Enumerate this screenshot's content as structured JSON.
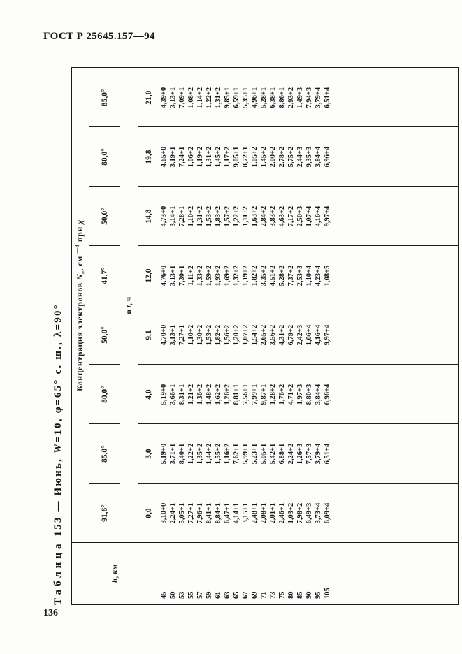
{
  "page": {
    "gost_header": "ГОСТ Р 25645.157—94",
    "page_number": "136"
  },
  "table": {
    "title": {
      "word": "Таблица",
      "rest": " 153 — Июнь, ",
      "w_overline": "W",
      "suffix": "=10, φ=65° с. ш., λ=90°"
    },
    "header": {
      "h_label": {
        "h": "h",
        "rest": ", км"
      },
      "concentration": {
        "part1": "Концентрация электронов ",
        "n": "N",
        "n_sub": "e",
        "part2": ", см ",
        "exp": "—3",
        "part3": " при ",
        "chi": "χ"
      },
      "angles": [
        "91,6°",
        "85,0°",
        "80,0°",
        "50,0°",
        "41,7°",
        "50,0°",
        "80,0°",
        "85,0°"
      ],
      "and_t": {
        "part1": "и ",
        "t": "t",
        "part2": ", ч"
      },
      "times": [
        "0,0",
        "3,0",
        "4,0",
        "9,1",
        "12,0",
        "14,8",
        "19,8",
        "21,0"
      ]
    },
    "rows": [
      {
        "h": "45",
        "values": [
          "3,10+0",
          "5,19+0",
          "5,19+0",
          "4,70+0",
          "4,76+0",
          "4,73+0",
          "4,65+0",
          "4,39+0"
        ]
      },
      {
        "h": "50",
        "values": [
          "2,24+1",
          "3,71+1",
          "3,66+1",
          "3,13+1",
          "3,13+1",
          "3,14+1",
          "3,19+1",
          "3,13+1"
        ]
      },
      {
        "h": "53",
        "values": [
          "5,05+1",
          "8,40+1",
          "8,31+1",
          "7,27+1",
          "7,30+1",
          "7,28+1",
          "7,24+1",
          "7,09+1"
        ]
      },
      {
        "h": "55",
        "values": [
          "7,27+1",
          "1,22+2",
          "1,21+2",
          "1,10+2",
          "1,11+2",
          "1,10+2",
          "1,06+2",
          "1,08+2"
        ]
      },
      {
        "h": "57",
        "values": [
          "7,96+1",
          "1,35+2",
          "1,36+2",
          "1,30+2",
          "1,33+2",
          "1,31+2",
          "1,19+2",
          "1,14+2"
        ]
      },
      {
        "h": "59",
        "values": [
          "8,41+1",
          "1,44+2",
          "1,48+2",
          "1,53+2",
          "1,59+2",
          "1,53+2",
          "1,31+2",
          "1,22+2"
        ]
      },
      {
        "h": "61",
        "values": [
          "8,84+1",
          "1,55+2",
          "1,62+2",
          "1,82+2",
          "1,93+2",
          "1,83+2",
          "1,45+2",
          "1,31+2"
        ]
      },
      {
        "h": "63",
        "values": [
          "6,47+1",
          "1,16+2",
          "1,26+2",
          "1,56+2",
          "1,69+2",
          "1,57+2",
          "1,17+2",
          "9,85+1"
        ]
      },
      {
        "h": "65",
        "values": [
          "4,14+1",
          "7,62+1",
          "8,81+1",
          "1,20+2",
          "1,32+2",
          "1,22+2",
          "9,05+1",
          "6,59+1"
        ]
      },
      {
        "h": "67",
        "values": [
          "3,15+1",
          "5,99+1",
          "7,56+1",
          "1,07+2",
          "1,19+2",
          "1,11+2",
          "8,72+1",
          "5,35+1"
        ]
      },
      {
        "h": "69",
        "values": [
          "2,48+1",
          "5,23+1",
          "7,99+1",
          "1,54+2",
          "1,82+2",
          "1,63+2",
          "1,05+2",
          "4,96+1"
        ]
      },
      {
        "h": "71",
        "values": [
          "2,08+1",
          "5,05+1",
          "9,87+1",
          "2,65+2",
          "3,35+2",
          "2,84+2",
          "1,45+2",
          "5,28+1"
        ]
      },
      {
        "h": "73",
        "values": [
          "2,01+1",
          "5,42+1",
          "1,28+2",
          "3,56+2",
          "4,51+2",
          "3,83+2",
          "2,00+2",
          "6,38+1"
        ]
      },
      {
        "h": "75",
        "values": [
          "2,46+1",
          "6,88+1",
          "1,76+2",
          "4,31+2",
          "5,28+2",
          "4,63+2",
          "2,78+2",
          "8,86+1"
        ]
      },
      {
        "h": "80",
        "values": [
          "1,03+2",
          "2,24+2",
          "4,71+2",
          "6,79+2",
          "7,37+2",
          "7,17+2",
          "5,75+2",
          "2,93+2"
        ]
      },
      {
        "h": "85",
        "values": [
          "7,98+2",
          "1,26+3",
          "1,97+3",
          "2,42+3",
          "2,53+3",
          "2,50+3",
          "2,44+3",
          "1,49+3"
        ]
      },
      {
        "h": "90",
        "values": [
          "6,49+3",
          "7,57+3",
          "8,80+3",
          "1,06+4",
          "1,10+4",
          "1,07+4",
          "9,35+3",
          "7,94+3"
        ]
      },
      {
        "h": "95",
        "values": [
          "3,73+4",
          "3,79+4",
          "3,84+4",
          "4,16+4",
          "4,23+4",
          "4,16+4",
          "3,84+4",
          "3,79+4"
        ]
      },
      {
        "h": "105",
        "values": [
          "6,09+4",
          "6,51+4",
          "6,96+4",
          "9,97+4",
          "1,08+5",
          "9,97+4",
          "6,96+4",
          "6,51+4"
        ]
      }
    ]
  }
}
